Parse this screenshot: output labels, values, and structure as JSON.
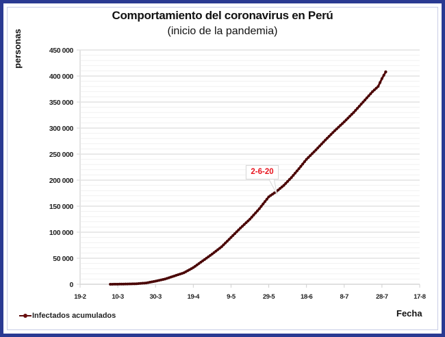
{
  "chart_data": {
    "type": "line",
    "title": "Comportamiento del coronavirus en Perú",
    "subtitle": "(inicio de la pandemia)",
    "xlabel": "Fecha",
    "ylabel": "personas",
    "ylim": [
      0,
      450000
    ],
    "y_ticks": [
      "0",
      "50 000",
      "100 000",
      "150 000",
      "200 000",
      "250 000",
      "300 000",
      "350 000",
      "400 000",
      "450 000"
    ],
    "y_tick_values": [
      0,
      50000,
      100000,
      150000,
      200000,
      250000,
      300000,
      350000,
      400000,
      450000
    ],
    "x_ticks": [
      "19-2",
      "10-3",
      "30-3",
      "19-4",
      "9-5",
      "29-5",
      "18-6",
      "8-7",
      "28-7",
      "17-8"
    ],
    "x_range_days_from_19_2": [
      0,
      180
    ],
    "grid": {
      "horizontal_major": true,
      "horizontal_minor": true,
      "vertical": false
    },
    "legend_position": "bottom-left",
    "annotation": {
      "label": "2-6-20",
      "x_day": 104,
      "y": 170000,
      "color": "#e8141e"
    },
    "series": [
      {
        "name": "Infectados acumulados",
        "color": "#5a0a0a",
        "x_days_from_19_2": [
          16,
          20,
          25,
          30,
          35,
          40,
          45,
          50,
          55,
          60,
          65,
          70,
          75,
          80,
          85,
          90,
          95,
          100,
          104,
          108,
          112,
          116,
          120,
          125,
          130,
          135,
          140,
          145,
          150,
          155,
          158,
          160,
          162
        ],
        "values": [
          0,
          200,
          500,
          1000,
          2500,
          6000,
          10000,
          16000,
          22000,
          32000,
          45000,
          58000,
          72000,
          90000,
          108000,
          125000,
          145000,
          168000,
          178000,
          190000,
          205000,
          222000,
          240000,
          258000,
          277000,
          295000,
          312000,
          330000,
          350000,
          370000,
          380000,
          395000,
          408000
        ]
      }
    ]
  },
  "legend": {
    "items": [
      {
        "label": "Infectados acumulados"
      }
    ]
  }
}
